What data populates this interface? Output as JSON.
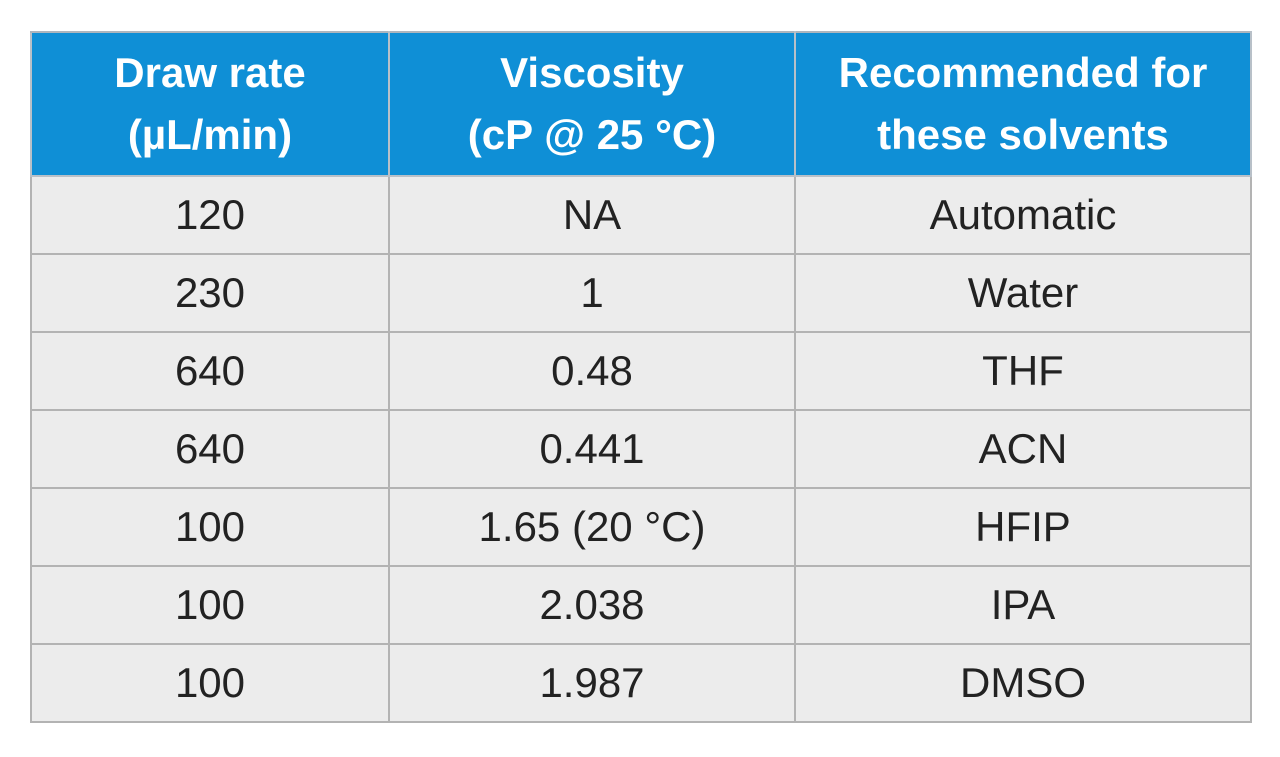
{
  "table": {
    "headers": [
      [
        "Draw rate",
        "(µL/min)"
      ],
      [
        "Viscosity",
        "(cP @ 25 °C)"
      ],
      [
        "Recommended for",
        "these solvents"
      ]
    ],
    "rows": [
      [
        "120",
        "NA",
        "Automatic"
      ],
      [
        "230",
        "1",
        "Water"
      ],
      [
        "640",
        "0.48",
        "THF"
      ],
      [
        "640",
        "0.441",
        "ACN"
      ],
      [
        "100",
        "1.65 (20 °C)",
        "HFIP"
      ],
      [
        "100",
        "2.038",
        "IPA"
      ],
      [
        "100",
        "1.987",
        "DMSO"
      ]
    ],
    "colors": {
      "header_background": "#0f8fd6",
      "header_text": "#ffffff",
      "row_background": "#ececec",
      "border": "#b3b3b3"
    }
  }
}
